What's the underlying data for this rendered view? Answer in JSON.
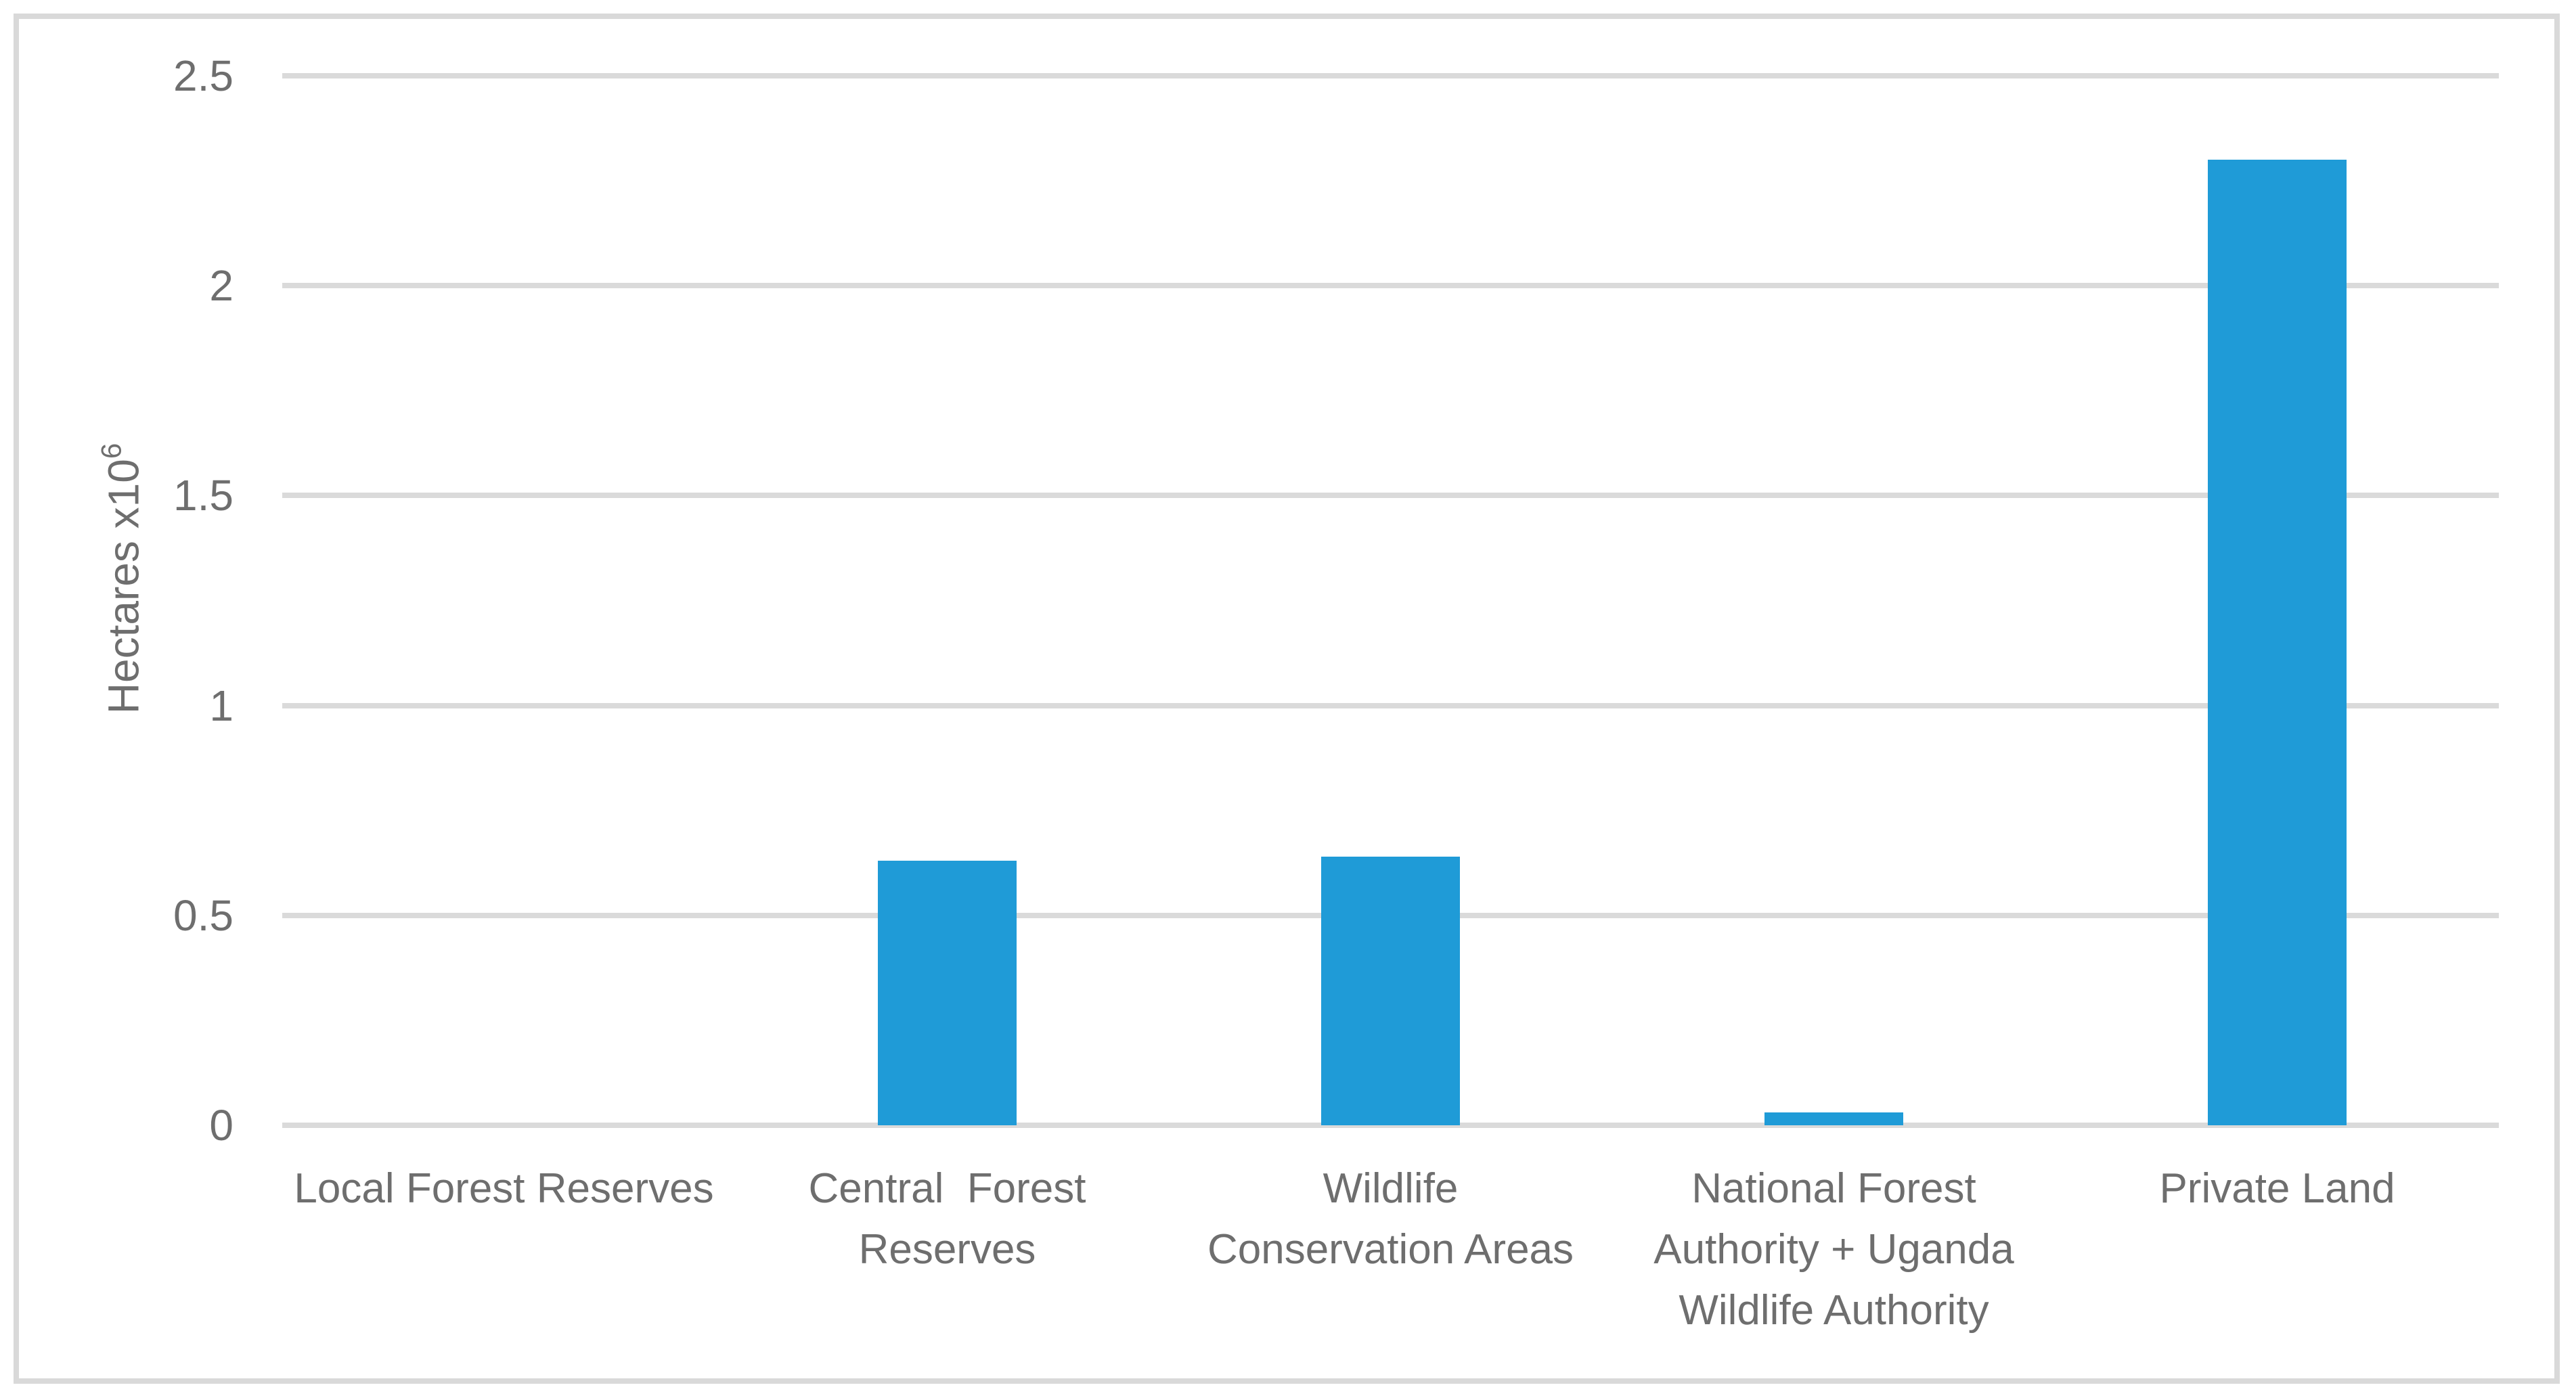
{
  "figure": {
    "background_color": "#ffffff",
    "border_color": "#d9d9d9",
    "text_color": "#6e6e6e"
  },
  "chart_data": {
    "type": "bar",
    "title": "",
    "categories": [
      "Local Forest Reserves",
      "Central  Forest\nReserves",
      "Wildlife\nConservation Areas",
      "National Forest\nAuthority + Uganda\nWildlife Authority",
      "Private Land"
    ],
    "category_names": [
      "local-forest-reserves",
      "central-forest-reserves",
      "wildlife-conservation-areas",
      "national-forest-authority-uganda-wildlife-authority",
      "private-land"
    ],
    "values": [
      0,
      0.63,
      0.64,
      0.03,
      2.3
    ],
    "xlabel": "",
    "ylabel_base": "Hectares x10",
    "ylabel_exponent": "6",
    "y_ticks": [
      0,
      0.5,
      1,
      1.5,
      2,
      2.5
    ],
    "y_tick_labels": [
      "0",
      "0.5",
      "1",
      "1.5",
      "2",
      "2.5"
    ],
    "ylim": [
      0,
      2.5
    ],
    "grid": true,
    "legend": "none",
    "bar_color": "#1f9bd7",
    "gridline_color": "#dadada"
  }
}
